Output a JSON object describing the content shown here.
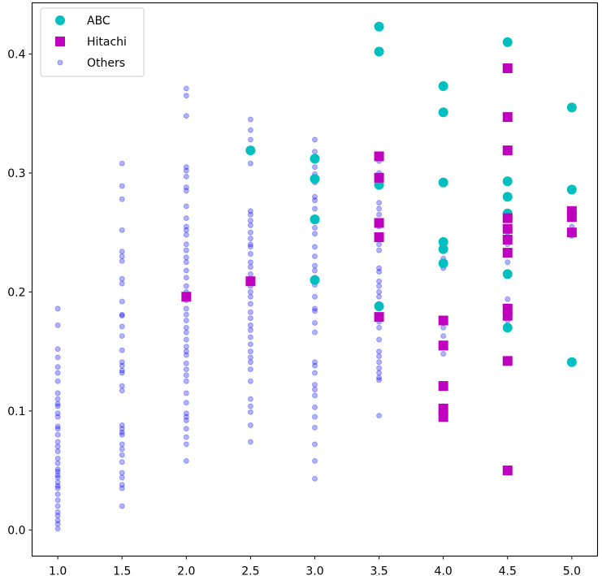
{
  "chart_data": {
    "type": "scatter",
    "title": "",
    "xlabel": "",
    "ylabel": "",
    "xlim": [
      0.8,
      5.2
    ],
    "ylim": [
      -0.022,
      0.443
    ],
    "x_ticks": [
      1.0,
      1.5,
      2.0,
      2.5,
      3.0,
      3.5,
      4.0,
      4.5,
      5.0
    ],
    "x_tick_labels": [
      "1.0",
      "1.5",
      "2.0",
      "2.5",
      "3.0",
      "3.5",
      "4.0",
      "4.5",
      "5.0"
    ],
    "y_ticks": [
      0.0,
      0.1,
      0.2,
      0.3,
      0.4
    ],
    "y_tick_labels": [
      "0.0",
      "0.1",
      "0.2",
      "0.3",
      "0.4"
    ],
    "grid": false,
    "legend_position": "top-left",
    "series": [
      {
        "name": "ABC",
        "marker": "circle",
        "color": "#00bfbf",
        "points": [
          [
            2.5,
            0.319
          ],
          [
            3.0,
            0.312
          ],
          [
            3.0,
            0.295
          ],
          [
            3.0,
            0.261
          ],
          [
            3.0,
            0.21
          ],
          [
            3.5,
            0.423
          ],
          [
            3.5,
            0.402
          ],
          [
            3.5,
            0.29
          ],
          [
            3.5,
            0.188
          ],
          [
            4.0,
            0.373
          ],
          [
            4.0,
            0.351
          ],
          [
            4.0,
            0.292
          ],
          [
            4.0,
            0.242
          ],
          [
            4.0,
            0.236
          ],
          [
            4.0,
            0.224
          ],
          [
            4.5,
            0.41
          ],
          [
            4.5,
            0.293
          ],
          [
            4.5,
            0.28
          ],
          [
            4.5,
            0.266
          ],
          [
            4.5,
            0.215
          ],
          [
            4.5,
            0.17
          ],
          [
            5.0,
            0.355
          ],
          [
            5.0,
            0.286
          ],
          [
            5.0,
            0.141
          ]
        ]
      },
      {
        "name": "Hitachi",
        "marker": "square",
        "color": "#bf00bf",
        "points": [
          [
            2.0,
            0.196
          ],
          [
            2.5,
            0.209
          ],
          [
            3.5,
            0.314
          ],
          [
            3.5,
            0.296
          ],
          [
            3.5,
            0.258
          ],
          [
            3.5,
            0.246
          ],
          [
            3.5,
            0.179
          ],
          [
            4.0,
            0.176
          ],
          [
            4.0,
            0.155
          ],
          [
            4.0,
            0.121
          ],
          [
            4.0,
            0.102
          ],
          [
            4.0,
            0.095
          ],
          [
            4.5,
            0.388
          ],
          [
            4.5,
            0.347
          ],
          [
            4.5,
            0.319
          ],
          [
            4.5,
            0.262
          ],
          [
            4.5,
            0.253
          ],
          [
            4.5,
            0.244
          ],
          [
            4.5,
            0.233
          ],
          [
            4.5,
            0.186
          ],
          [
            4.5,
            0.18
          ],
          [
            4.5,
            0.142
          ],
          [
            4.5,
            0.05
          ],
          [
            5.0,
            0.268
          ],
          [
            5.0,
            0.263
          ],
          [
            5.0,
            0.25
          ]
        ]
      },
      {
        "name": "Others",
        "marker": "circle-small",
        "color": "#0000ff",
        "opacity": 0.3,
        "points": [
          [
            1.0,
            0.186
          ],
          [
            1.0,
            0.172
          ],
          [
            1.0,
            0.152
          ],
          [
            1.0,
            0.145
          ],
          [
            1.0,
            0.137
          ],
          [
            1.0,
            0.132
          ],
          [
            1.0,
            0.125
          ],
          [
            1.0,
            0.115
          ],
          [
            1.0,
            0.11
          ],
          [
            1.0,
            0.106
          ],
          [
            1.0,
            0.104
          ],
          [
            1.0,
            0.098
          ],
          [
            1.0,
            0.095
          ],
          [
            1.0,
            0.087
          ],
          [
            1.0,
            0.085
          ],
          [
            1.0,
            0.08
          ],
          [
            1.0,
            0.074
          ],
          [
            1.0,
            0.07
          ],
          [
            1.0,
            0.066
          ],
          [
            1.0,
            0.06
          ],
          [
            1.0,
            0.056
          ],
          [
            1.0,
            0.051
          ],
          [
            1.0,
            0.049
          ],
          [
            1.0,
            0.046
          ],
          [
            1.0,
            0.044
          ],
          [
            1.0,
            0.04
          ],
          [
            1.0,
            0.037
          ],
          [
            1.0,
            0.035
          ],
          [
            1.0,
            0.03
          ],
          [
            1.0,
            0.025
          ],
          [
            1.0,
            0.02
          ],
          [
            1.0,
            0.015
          ],
          [
            1.0,
            0.012
          ],
          [
            1.0,
            0.008
          ],
          [
            1.0,
            0.005
          ],
          [
            1.0,
            0.001
          ],
          [
            1.5,
            0.308
          ],
          [
            1.5,
            0.289
          ],
          [
            1.5,
            0.278
          ],
          [
            1.5,
            0.252
          ],
          [
            1.5,
            0.234
          ],
          [
            1.5,
            0.23
          ],
          [
            1.5,
            0.226
          ],
          [
            1.5,
            0.211
          ],
          [
            1.5,
            0.207
          ],
          [
            1.5,
            0.192
          ],
          [
            1.5,
            0.181
          ],
          [
            1.5,
            0.18
          ],
          [
            1.5,
            0.171
          ],
          [
            1.5,
            0.163
          ],
          [
            1.5,
            0.151
          ],
          [
            1.5,
            0.141
          ],
          [
            1.5,
            0.138
          ],
          [
            1.5,
            0.134
          ],
          [
            1.5,
            0.132
          ],
          [
            1.5,
            0.121
          ],
          [
            1.5,
            0.117
          ],
          [
            1.5,
            0.088
          ],
          [
            1.5,
            0.085
          ],
          [
            1.5,
            0.082
          ],
          [
            1.5,
            0.08
          ],
          [
            1.5,
            0.072
          ],
          [
            1.5,
            0.068
          ],
          [
            1.5,
            0.063
          ],
          [
            1.5,
            0.057
          ],
          [
            1.5,
            0.048
          ],
          [
            1.5,
            0.044
          ],
          [
            1.5,
            0.038
          ],
          [
            1.5,
            0.035
          ],
          [
            1.5,
            0.02
          ],
          [
            2.0,
            0.371
          ],
          [
            2.0,
            0.365
          ],
          [
            2.0,
            0.348
          ],
          [
            2.0,
            0.305
          ],
          [
            2.0,
            0.302
          ],
          [
            2.0,
            0.297
          ],
          [
            2.0,
            0.288
          ],
          [
            2.0,
            0.285
          ],
          [
            2.0,
            0.272
          ],
          [
            2.0,
            0.262
          ],
          [
            2.0,
            0.255
          ],
          [
            2.0,
            0.252
          ],
          [
            2.0,
            0.248
          ],
          [
            2.0,
            0.24
          ],
          [
            2.0,
            0.235
          ],
          [
            2.0,
            0.229
          ],
          [
            2.0,
            0.225
          ],
          [
            2.0,
            0.218
          ],
          [
            2.0,
            0.212
          ],
          [
            2.0,
            0.205
          ],
          [
            2.0,
            0.2
          ],
          [
            2.0,
            0.193
          ],
          [
            2.0,
            0.186
          ],
          [
            2.0,
            0.181
          ],
          [
            2.0,
            0.176
          ],
          [
            2.0,
            0.17
          ],
          [
            2.0,
            0.166
          ],
          [
            2.0,
            0.16
          ],
          [
            2.0,
            0.154
          ],
          [
            2.0,
            0.15
          ],
          [
            2.0,
            0.147
          ],
          [
            2.0,
            0.14
          ],
          [
            2.0,
            0.135
          ],
          [
            2.0,
            0.13
          ],
          [
            2.0,
            0.125
          ],
          [
            2.0,
            0.115
          ],
          [
            2.0,
            0.107
          ],
          [
            2.0,
            0.098
          ],
          [
            2.0,
            0.095
          ],
          [
            2.0,
            0.092
          ],
          [
            2.0,
            0.085
          ],
          [
            2.0,
            0.078
          ],
          [
            2.0,
            0.072
          ],
          [
            2.0,
            0.058
          ],
          [
            2.5,
            0.345
          ],
          [
            2.5,
            0.336
          ],
          [
            2.5,
            0.328
          ],
          [
            2.5,
            0.308
          ],
          [
            2.5,
            0.268
          ],
          [
            2.5,
            0.265
          ],
          [
            2.5,
            0.26
          ],
          [
            2.5,
            0.256
          ],
          [
            2.5,
            0.25
          ],
          [
            2.5,
            0.245
          ],
          [
            2.5,
            0.24
          ],
          [
            2.5,
            0.238
          ],
          [
            2.5,
            0.232
          ],
          [
            2.5,
            0.225
          ],
          [
            2.5,
            0.221
          ],
          [
            2.5,
            0.215
          ],
          [
            2.5,
            0.21
          ],
          [
            2.5,
            0.205
          ],
          [
            2.5,
            0.2
          ],
          [
            2.5,
            0.196
          ],
          [
            2.5,
            0.19
          ],
          [
            2.5,
            0.183
          ],
          [
            2.5,
            0.178
          ],
          [
            2.5,
            0.172
          ],
          [
            2.5,
            0.168
          ],
          [
            2.5,
            0.162
          ],
          [
            2.5,
            0.156
          ],
          [
            2.5,
            0.15
          ],
          [
            2.5,
            0.145
          ],
          [
            2.5,
            0.141
          ],
          [
            2.5,
            0.135
          ],
          [
            2.5,
            0.125
          ],
          [
            2.5,
            0.11
          ],
          [
            2.5,
            0.104
          ],
          [
            2.5,
            0.099
          ],
          [
            2.5,
            0.088
          ],
          [
            2.5,
            0.074
          ],
          [
            3.0,
            0.328
          ],
          [
            3.0,
            0.318
          ],
          [
            3.0,
            0.305
          ],
          [
            3.0,
            0.299
          ],
          [
            3.0,
            0.292
          ],
          [
            3.0,
            0.28
          ],
          [
            3.0,
            0.277
          ],
          [
            3.0,
            0.27
          ],
          [
            3.0,
            0.254
          ],
          [
            3.0,
            0.249
          ],
          [
            3.0,
            0.238
          ],
          [
            3.0,
            0.23
          ],
          [
            3.0,
            0.222
          ],
          [
            3.0,
            0.218
          ],
          [
            3.0,
            0.212
          ],
          [
            3.0,
            0.206
          ],
          [
            3.0,
            0.196
          ],
          [
            3.0,
            0.186
          ],
          [
            3.0,
            0.184
          ],
          [
            3.0,
            0.174
          ],
          [
            3.0,
            0.166
          ],
          [
            3.0,
            0.141
          ],
          [
            3.0,
            0.138
          ],
          [
            3.0,
            0.132
          ],
          [
            3.0,
            0.122
          ],
          [
            3.0,
            0.118
          ],
          [
            3.0,
            0.113
          ],
          [
            3.0,
            0.103
          ],
          [
            3.0,
            0.095
          ],
          [
            3.0,
            0.086
          ],
          [
            3.0,
            0.072
          ],
          [
            3.0,
            0.058
          ],
          [
            3.0,
            0.043
          ],
          [
            3.5,
            0.31
          ],
          [
            3.5,
            0.3
          ],
          [
            3.5,
            0.289
          ],
          [
            3.5,
            0.275
          ],
          [
            3.5,
            0.27
          ],
          [
            3.5,
            0.265
          ],
          [
            3.5,
            0.255
          ],
          [
            3.5,
            0.24
          ],
          [
            3.5,
            0.235
          ],
          [
            3.5,
            0.22
          ],
          [
            3.5,
            0.217
          ],
          [
            3.5,
            0.209
          ],
          [
            3.5,
            0.205
          ],
          [
            3.5,
            0.2
          ],
          [
            3.5,
            0.196
          ],
          [
            3.5,
            0.19
          ],
          [
            3.5,
            0.175
          ],
          [
            3.5,
            0.17
          ],
          [
            3.5,
            0.16
          ],
          [
            3.5,
            0.15
          ],
          [
            3.5,
            0.146
          ],
          [
            3.5,
            0.141
          ],
          [
            3.5,
            0.136
          ],
          [
            3.5,
            0.132
          ],
          [
            3.5,
            0.128
          ],
          [
            3.5,
            0.126
          ],
          [
            3.5,
            0.096
          ],
          [
            4.0,
            0.228
          ],
          [
            4.0,
            0.22
          ],
          [
            4.0,
            0.17
          ],
          [
            4.0,
            0.163
          ],
          [
            4.0,
            0.156
          ],
          [
            4.0,
            0.148
          ],
          [
            4.0,
            0.104
          ],
          [
            4.0,
            0.096
          ],
          [
            4.5,
            0.26
          ],
          [
            4.5,
            0.25
          ],
          [
            4.5,
            0.24
          ],
          [
            4.5,
            0.225
          ],
          [
            4.5,
            0.194
          ],
          [
            4.5,
            0.188
          ],
          [
            4.5,
            0.176
          ],
          [
            5.0,
            0.255
          ],
          [
            5.0,
            0.247
          ]
        ]
      }
    ]
  }
}
